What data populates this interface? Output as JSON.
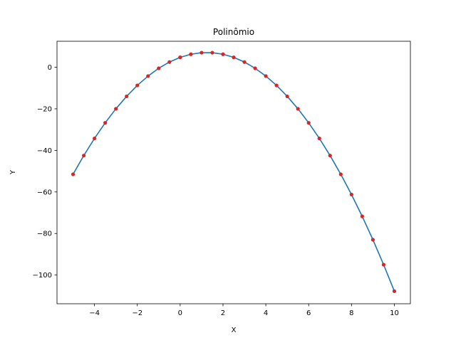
{
  "chart_data": {
    "type": "line",
    "title": "Polinômio",
    "xlabel": "X",
    "ylabel": "Y",
    "xlim": [
      -5.75,
      10.75
    ],
    "ylim": [
      -113.8,
      12.5
    ],
    "xticks": [
      -4,
      -2,
      0,
      2,
      4,
      6,
      8,
      10
    ],
    "yticks": [
      0,
      -20,
      -40,
      -60,
      -80,
      -100
    ],
    "xtick_labels": [
      "−4",
      "−2",
      "0",
      "2",
      "4",
      "6",
      "8",
      "10"
    ],
    "ytick_labels": [
      "0",
      "−20",
      "−40",
      "−60",
      "−80",
      "−100"
    ],
    "grid": false,
    "legend": false,
    "series": [
      {
        "kind": "line",
        "color": "#1f77b4",
        "x": [
          -5.0,
          -4.5,
          -4.0,
          -3.5,
          -3.0,
          -2.5,
          -2.0,
          -1.5,
          -1.0,
          -0.5,
          0.0,
          0.5,
          1.0,
          1.5,
          2.0,
          2.5,
          3.0,
          3.5,
          4.0,
          4.5,
          5.0,
          5.5,
          6.0,
          6.5,
          7.0,
          7.5,
          8.0,
          8.5,
          9.0,
          9.5,
          10.0
        ],
        "y": [
          -51.5,
          -42.5,
          -34.25,
          -26.75,
          -20.0,
          -14.0,
          -8.75,
          -4.25,
          -0.5,
          2.5,
          4.75,
          6.25,
          7.0,
          7.0,
          6.25,
          4.75,
          2.5,
          -0.5,
          -4.25,
          -8.75,
          -14.0,
          -20.0,
          -26.75,
          -34.25,
          -42.5,
          -51.5,
          -61.25,
          -71.75,
          -83.0,
          -95.0,
          -107.75
        ]
      },
      {
        "kind": "scatter",
        "color": "#d62728",
        "x": [
          -5.0,
          -4.5,
          -4.0,
          -3.5,
          -3.0,
          -2.5,
          -2.0,
          -1.5,
          -1.0,
          -0.5,
          0.0,
          0.5,
          1.0,
          1.5,
          2.0,
          2.5,
          3.0,
          3.5,
          4.0,
          4.5,
          5.0,
          5.5,
          6.0,
          6.5,
          7.0,
          7.5,
          8.0,
          8.5,
          9.0,
          9.5,
          10.0
        ],
        "y": [
          -51.5,
          -42.5,
          -34.25,
          -26.75,
          -20.0,
          -14.0,
          -8.75,
          -4.25,
          -0.5,
          2.5,
          4.75,
          6.25,
          7.0,
          7.0,
          6.25,
          4.75,
          2.5,
          -0.5,
          -4.25,
          -8.75,
          -14.0,
          -20.0,
          -26.75,
          -34.25,
          -42.5,
          -51.5,
          -61.25,
          -71.75,
          -83.0,
          -95.0,
          -107.75
        ]
      }
    ]
  }
}
